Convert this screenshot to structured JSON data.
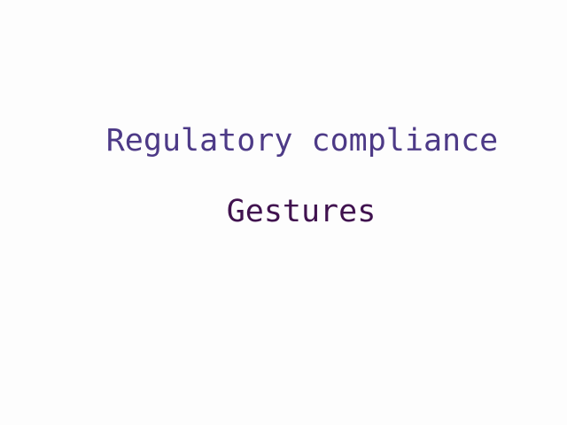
{
  "heading": {
    "text": "Regulatory compliance",
    "color": "#4d3a87"
  },
  "subheading": {
    "text": "Gestures",
    "color": "#40124f"
  },
  "background": "#fdfdfd"
}
